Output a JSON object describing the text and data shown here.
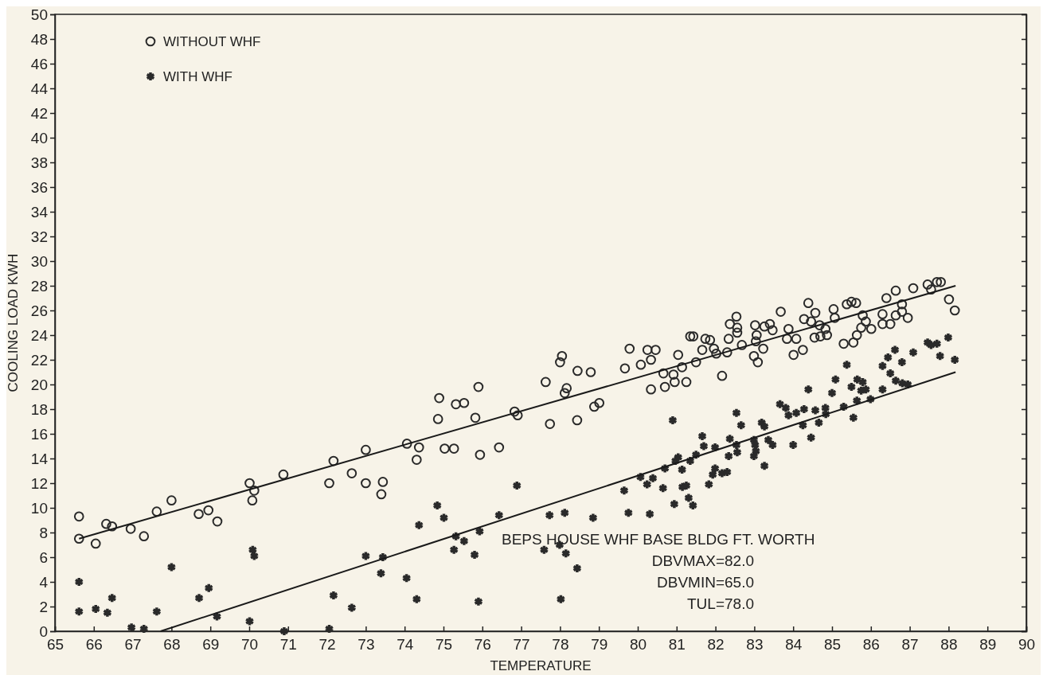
{
  "chart_data": {
    "type": "scatter",
    "xlabel": "TEMPERATURE",
    "ylabel": "COOLING LOAD  KWH",
    "xlim": [
      65,
      90
    ],
    "ylim": [
      0,
      50
    ],
    "xticks": [
      65,
      66,
      67,
      68,
      69,
      70,
      71,
      72,
      73,
      74,
      75,
      76,
      77,
      78,
      79,
      80,
      81,
      82,
      83,
      84,
      85,
      86,
      87,
      88,
      89,
      90
    ],
    "yticks": [
      0,
      2,
      4,
      6,
      8,
      10,
      12,
      14,
      16,
      18,
      20,
      22,
      24,
      26,
      28,
      30,
      32,
      34,
      36,
      38,
      40,
      42,
      44,
      46,
      48,
      50
    ],
    "grid": false,
    "legend": "top left",
    "annotations": [
      "BEPS HOUSE WHF BASE BLDG FT. WORTH",
      "DBVMAX=82.0",
      "DBVMIN=65.0",
      "TUL=78.0"
    ],
    "series": [
      {
        "name": "WITHOUT WHF",
        "marker": "circle",
        "color": "#2a2a2a",
        "x": [
          65.62,
          65.62,
          66.05,
          66.32,
          66.47,
          66.95,
          67.29,
          67.62,
          68.0,
          68.7,
          68.95,
          69.18,
          70.01,
          70.13,
          70.08,
          70.88,
          72.06,
          72.17,
          72.64,
          73.0,
          73.0,
          73.44,
          73.4,
          74.06,
          74.37,
          74.31,
          74.89,
          74.86,
          75.03,
          75.27,
          75.32,
          75.53,
          75.82,
          75.9,
          75.94,
          76.43,
          76.83,
          76.91,
          77.63,
          77.74,
          78.0,
          78.05,
          78.12,
          78.17,
          78.45,
          78.44,
          78.79,
          78.88,
          79.01,
          79.67,
          79.79,
          80.08,
          80.25,
          80.46,
          80.34,
          80.34,
          80.66,
          80.7,
          80.92,
          80.95,
          81.04,
          81.14,
          81.5,
          81.25,
          82.17,
          81.35,
          81.43,
          81.66,
          81.74,
          81.86,
          81.96,
          82.02,
          82.34,
          82.37,
          82.54,
          82.56,
          82.56,
          82.3,
          82.68,
          83.02,
          83.06,
          83.04,
          83.23,
          82.99,
          83.09,
          83.26,
          83.4,
          83.47,
          83.68,
          83.88,
          83.84,
          84.08,
          84.01,
          84.25,
          84.28,
          84.46,
          84.39,
          84.57,
          84.55,
          84.7,
          84.87,
          84.68,
          84.83,
          85.04,
          85.07,
          85.3,
          85.55,
          85.64,
          85.75,
          85.79,
          85.87,
          86.01,
          85.38,
          85.62,
          85.5,
          86.4,
          86.64,
          87.09,
          87.46,
          87.55,
          87.7,
          87.8,
          88.01,
          88.16,
          86.3,
          86.3,
          86.5,
          86.64,
          86.8,
          86.8,
          86.95
        ],
        "values": [
          9.3,
          7.5,
          7.1,
          8.7,
          8.5,
          8.3,
          7.7,
          9.7,
          10.6,
          9.5,
          9.8,
          8.9,
          12.0,
          11.4,
          10.6,
          12.7,
          12.0,
          13.8,
          12.8,
          14.7,
          12.0,
          12.1,
          11.1,
          15.2,
          14.9,
          13.9,
          18.9,
          17.2,
          14.8,
          14.8,
          18.4,
          18.5,
          17.3,
          19.8,
          14.3,
          14.9,
          17.8,
          17.5,
          20.2,
          16.8,
          21.8,
          22.3,
          19.3,
          19.7,
          21.1,
          17.1,
          21.0,
          18.2,
          18.5,
          21.3,
          22.9,
          21.6,
          22.8,
          22.8,
          22.0,
          19.6,
          20.9,
          19.8,
          20.8,
          20.2,
          22.4,
          21.4,
          21.8,
          20.2,
          20.7,
          23.9,
          23.9,
          22.8,
          23.7,
          23.6,
          22.9,
          22.5,
          23.7,
          24.9,
          25.5,
          24.2,
          24.6,
          22.6,
          23.2,
          24.8,
          24.0,
          23.5,
          22.9,
          22.3,
          21.8,
          24.7,
          24.9,
          24.4,
          25.9,
          24.5,
          23.7,
          23.7,
          22.4,
          22.8,
          25.3,
          25.1,
          26.6,
          25.8,
          23.8,
          23.9,
          24.0,
          24.8,
          24.5,
          26.1,
          25.4,
          23.3,
          23.4,
          24.0,
          24.6,
          25.6,
          25.1,
          24.5,
          26.5,
          26.6,
          26.7,
          27.0,
          27.6,
          27.8,
          28.1,
          27.7,
          28.3,
          28.3,
          26.9,
          26.0,
          25.7,
          24.9,
          24.9,
          25.6,
          26.5,
          25.9,
          25.4
        ]
      },
      {
        "name": "WITH WHF",
        "marker": "cross",
        "color": "#2a2a2a",
        "x": [
          65.62,
          65.62,
          66.05,
          66.35,
          66.47,
          66.97,
          67.29,
          67.62,
          68.0,
          68.71,
          68.96,
          69.17,
          70.01,
          70.09,
          70.13,
          70.9,
          72.06,
          72.17,
          72.64,
          73.0,
          76.89,
          74.84,
          75.01,
          74.37,
          76.43,
          75.93,
          75.32,
          75.53,
          75.27,
          75.8,
          73.44,
          73.39,
          74.05,
          74.31,
          75.9,
          77.73,
          78.12,
          77.59,
          77.99,
          78.15,
          78.44,
          78.02,
          78.85,
          79.65,
          79.76,
          80.31,
          80.07,
          80.24,
          80.39,
          80.65,
          80.7,
          80.9,
          80.94,
          80.97,
          81.04,
          81.14,
          81.15,
          81.25,
          81.35,
          81.5,
          81.31,
          81.42,
          81.66,
          81.7,
          81.99,
          81.83,
          81.93,
          81.99,
          82.17,
          82.3,
          82.34,
          82.37,
          82.54,
          82.56,
          82.54,
          82.66,
          82.99,
          83.02,
          83.04,
          82.99,
          83.26,
          83.19,
          83.26,
          83.36,
          83.47,
          83.66,
          83.81,
          83.88,
          84.08,
          84.0,
          84.25,
          84.28,
          84.46,
          84.39,
          84.57,
          84.66,
          84.83,
          84.84,
          85.0,
          85.09,
          85.3,
          85.38,
          85.5,
          85.55,
          85.64,
          85.65,
          85.79,
          85.87,
          85.75,
          85.99,
          86.3,
          86.3,
          86.44,
          86.5,
          86.62,
          86.64,
          86.8,
          86.81,
          86.95,
          87.09,
          87.46,
          87.55,
          87.7,
          87.78,
          87.99,
          88.16
        ],
        "values": [
          4.0,
          1.6,
          1.8,
          1.5,
          2.7,
          0.3,
          0.2,
          1.6,
          5.2,
          2.7,
          3.5,
          1.2,
          0.8,
          6.6,
          6.1,
          0,
          0.2,
          2.9,
          1.9,
          6.1,
          11.8,
          10.2,
          9.2,
          8.6,
          9.4,
          8.1,
          7.7,
          7.3,
          6.6,
          6.2,
          6.0,
          4.7,
          4.3,
          2.6,
          2.4,
          9.4,
          9.6,
          6.6,
          7.0,
          6.3,
          5.1,
          2.6,
          9.2,
          11.4,
          9.6,
          9.5,
          12.5,
          11.9,
          12.4,
          11.6,
          13.2,
          17.1,
          10.3,
          13.8,
          14.1,
          13.1,
          11.7,
          11.8,
          13.8,
          14.3,
          10.8,
          10.2,
          15.8,
          15.0,
          14.9,
          11.9,
          12.7,
          13.2,
          12.8,
          12.9,
          14.2,
          15.6,
          15.1,
          14.5,
          17.7,
          16.7,
          15.5,
          15.1,
          14.6,
          14.2,
          13.4,
          16.9,
          16.6,
          15.5,
          15.1,
          18.4,
          18.1,
          17.5,
          17.7,
          15.1,
          16.7,
          18.0,
          15.7,
          19.6,
          17.9,
          16.9,
          18.1,
          17.6,
          19.3,
          20.4,
          18.2,
          21.6,
          19.8,
          17.3,
          18.7,
          20.4,
          20.2,
          19.6,
          19.5,
          18.8,
          19.6,
          21.5,
          22.2,
          20.9,
          22.8,
          20.3,
          21.8,
          20.1,
          20.0,
          22.6,
          23.4,
          23.2,
          23.3,
          22.3,
          23.8,
          22.0
        ]
      },
      {
        "type": "line",
        "color": "#1a1a1a",
        "x": [
          65.62,
          88.18
        ],
        "values": [
          7.5,
          28.0
        ]
      },
      {
        "type": "line",
        "color": "#1a1a1a",
        "x": [
          67.72,
          88.18
        ],
        "values": [
          0,
          21.0
        ]
      }
    ]
  }
}
